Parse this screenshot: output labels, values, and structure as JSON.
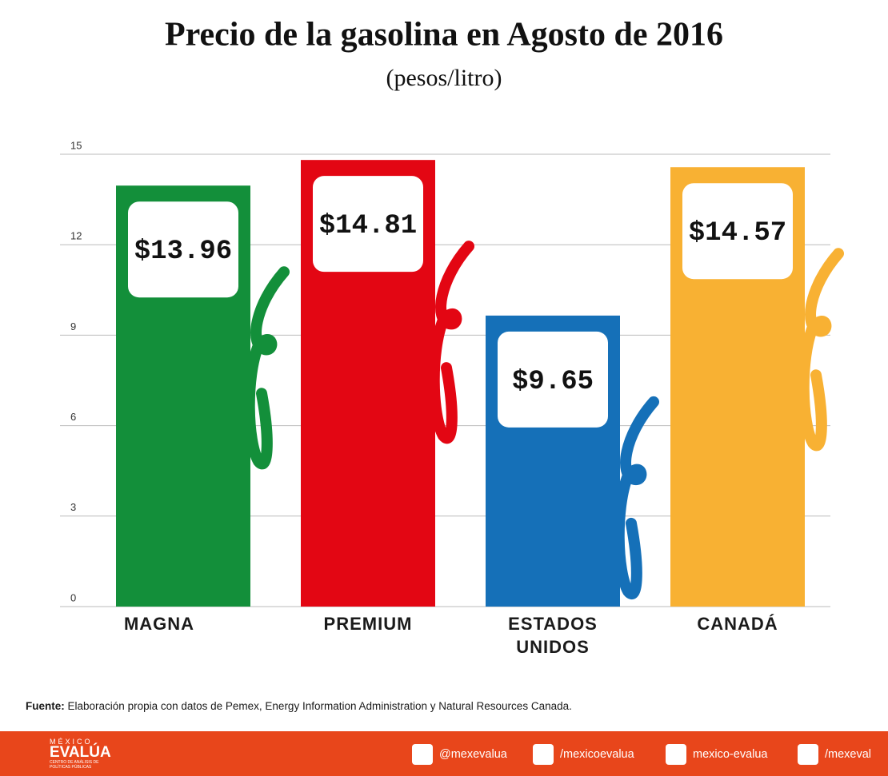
{
  "chart_data": {
    "type": "bar",
    "title": "Precio de la gasolina en Agosto de 2016",
    "subtitle": "(pesos/litro)",
    "categories": [
      "MAGNA",
      "PREMIUM",
      "ESTADOS UNIDOS",
      "CANADÁ"
    ],
    "values": [
      13.96,
      14.81,
      9.65,
      14.57
    ],
    "value_labels": [
      "$13.96",
      "$14.81",
      "$9.65",
      "$14.57"
    ],
    "colors": [
      "#138f3a",
      "#e30613",
      "#1570b8",
      "#f8b133"
    ],
    "ylim": [
      0,
      15
    ],
    "yticks": [
      0,
      3,
      6,
      9,
      12,
      15
    ],
    "grid": true,
    "source_label": "Fuente:",
    "source_text": "Elaboración propia con datos de Pemex, Energy Information Administration y Natural Resources Canada."
  },
  "footer": {
    "logo_top": "MÉXICO",
    "logo_main": "EVALÚA",
    "logo_sub": "CENTRO DE ANÁLISIS DE POLÍTICAS PÚBLICAS",
    "social": [
      "@mexevalua",
      "/mexicoevalua",
      "mexico-evalua",
      "/mexeval"
    ]
  }
}
